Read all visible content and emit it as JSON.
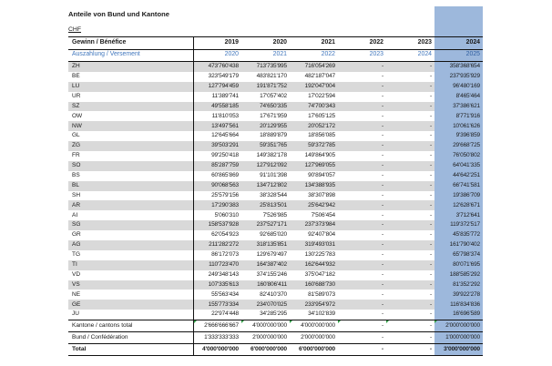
{
  "title": "Anteile von Bund und Kantone",
  "currency_label": "CHF",
  "colors": {
    "highlight": "#9db8dc",
    "alt_row": "#d9d9d9",
    "blue_text": "#4177bd",
    "blue_text_on_highlight": "#2e5d9f",
    "flag_green": "#2f9e44"
  },
  "table": {
    "profit_header": {
      "label": "Gewinn / Bénéfice",
      "years": [
        "2019",
        "2020",
        "2021",
        "2022",
        "2023",
        "2024"
      ]
    },
    "payout_header": {
      "label": "Auszahlung / Versement",
      "years": [
        "2020",
        "2021",
        "2022",
        "2023",
        "2024",
        "2025"
      ]
    },
    "highlighted_column_index": 5,
    "rows": [
      {
        "label": "ZH",
        "values": [
          "473'760'438",
          "713'735'995",
          "716'054'269",
          "-",
          "-",
          "358'368'654"
        ]
      },
      {
        "label": "BE",
        "values": [
          "323'549'179",
          "483'821'170",
          "482'187'047",
          "-",
          "-",
          "237'935'929"
        ]
      },
      {
        "label": "LU",
        "values": [
          "127'794'459",
          "191'871'752",
          "192'047'004",
          "-",
          "-",
          "96'480'169"
        ]
      },
      {
        "label": "UR",
        "values": [
          "11'389'741",
          "17'057'402",
          "17'022'594",
          "-",
          "-",
          "8'465'464"
        ]
      },
      {
        "label": "SZ",
        "values": [
          "49'558'185",
          "74'650'335",
          "74'700'343",
          "-",
          "-",
          "37'386'621"
        ]
      },
      {
        "label": "OW",
        "values": [
          "11'810'053",
          "17'671'959",
          "17'605'125",
          "-",
          "-",
          "8'771'916"
        ]
      },
      {
        "label": "NW",
        "values": [
          "13'497'561",
          "20'129'955",
          "20'052'172",
          "-",
          "-",
          "10'061'626"
        ]
      },
      {
        "label": "GL",
        "values": [
          "12'645'664",
          "18'889'879",
          "18'856'085",
          "-",
          "-",
          "9'396'859"
        ]
      },
      {
        "label": "ZG",
        "values": [
          "39'503'291",
          "59'351'765",
          "59'372'785",
          "-",
          "-",
          "29'668'725"
        ]
      },
      {
        "label": "FR",
        "values": [
          "99'250'418",
          "149'382'178",
          "149'864'905",
          "-",
          "-",
          "76'050'802"
        ]
      },
      {
        "label": "SO",
        "values": [
          "85'287'759",
          "127'912'092",
          "127'969'055",
          "-",
          "-",
          "64'041'335"
        ]
      },
      {
        "label": "BS",
        "values": [
          "60'865'869",
          "91'101'398",
          "90'894'057",
          "-",
          "-",
          "44'642'251"
        ]
      },
      {
        "label": "BL",
        "values": [
          "90'068'563",
          "134'712'802",
          "134'388'935",
          "-",
          "-",
          "66'741'581"
        ]
      },
      {
        "label": "SH",
        "values": [
          "25'579'156",
          "38'328'544",
          "38'307'898",
          "-",
          "-",
          "19'386'709"
        ]
      },
      {
        "label": "AR",
        "values": [
          "17'290'383",
          "25'813'501",
          "25'642'942",
          "-",
          "-",
          "12'628'671"
        ]
      },
      {
        "label": "AI",
        "values": [
          "5'060'310",
          "7'526'985",
          "7'506'454",
          "-",
          "-",
          "3'712'641"
        ]
      },
      {
        "label": "SG",
        "values": [
          "158'537'928",
          "237'527'171",
          "237'373'984",
          "-",
          "-",
          "119'372'517"
        ]
      },
      {
        "label": "GR",
        "values": [
          "62'054'923",
          "92'685'020",
          "92'407'804",
          "-",
          "-",
          "45'835'772"
        ]
      },
      {
        "label": "AG",
        "values": [
          "211'282'272",
          "318'135'851",
          "319'493'031",
          "-",
          "-",
          "161'790'402"
        ]
      },
      {
        "label": "TG",
        "values": [
          "86'172'073",
          "129'679'497",
          "130'225'783",
          "-",
          "-",
          "65'798'374"
        ]
      },
      {
        "label": "TI",
        "values": [
          "110'723'470",
          "164'387'402",
          "162'644'932",
          "-",
          "-",
          "80'071'695"
        ]
      },
      {
        "label": "VD",
        "values": [
          "249'348'143",
          "374'155'246",
          "375'047'182",
          "-",
          "-",
          "188'585'292"
        ]
      },
      {
        "label": "VS",
        "values": [
          "107'335'613",
          "160'806'411",
          "160'688'730",
          "-",
          "-",
          "81'352'292"
        ]
      },
      {
        "label": "NE",
        "values": [
          "55'563'434",
          "82'410'370",
          "81'589'073",
          "-",
          "-",
          "39'922'278"
        ]
      },
      {
        "label": "GE",
        "values": [
          "155'773'334",
          "234'070'025",
          "233'954'972",
          "-",
          "-",
          "116'834'836"
        ]
      },
      {
        "label": "JU",
        "values": [
          "22'974'448",
          "34'285'295",
          "34'102'839",
          "-",
          "-",
          "16'696'589"
        ]
      }
    ],
    "total_rows": [
      {
        "label": "Kantone / cantons total",
        "values": [
          "2'666'666'667",
          "4'000'000'000",
          "4'000'000'000",
          "-",
          "-",
          "2'000'000'000"
        ],
        "bold": false,
        "flags": [
          true,
          true,
          true,
          true,
          true,
          true
        ]
      },
      {
        "label": "Bund / Confédération",
        "values": [
          "1'333'333'333",
          "2'000'000'000",
          "2'000'000'000",
          "-",
          "-",
          "1'000'000'000"
        ],
        "bold": false
      },
      {
        "label": "Total",
        "values": [
          "4'000'000'000",
          "6'000'000'000",
          "6'000'000'000",
          "-",
          "-",
          "3'000'000'000"
        ],
        "bold": true
      }
    ]
  }
}
